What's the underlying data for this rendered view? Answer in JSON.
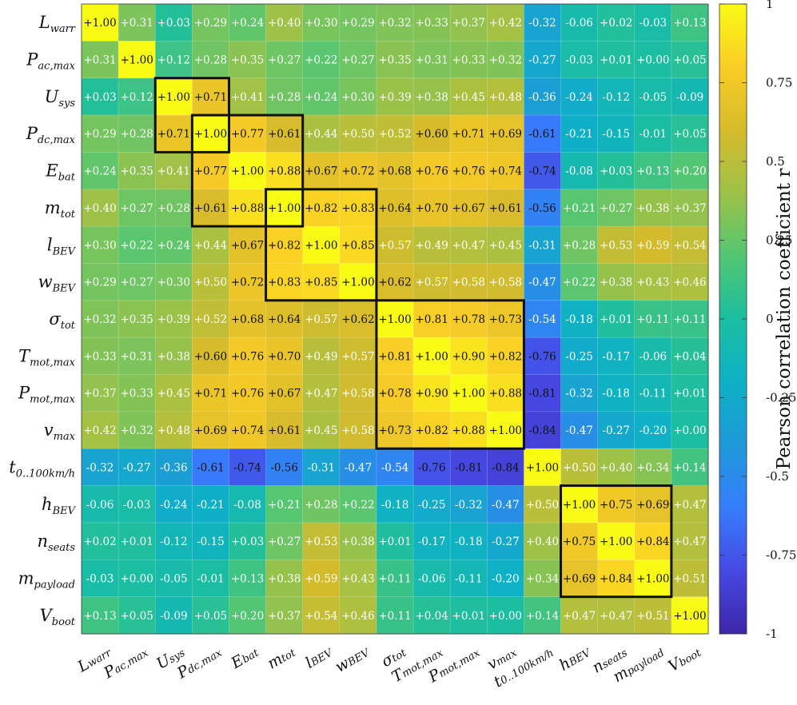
{
  "chart_data": {
    "type": "heatmap",
    "variables": [
      {
        "base": "L",
        "sub": "warr"
      },
      {
        "base": "P",
        "sub": "ac,max"
      },
      {
        "base": "U",
        "sub": "sys"
      },
      {
        "base": "P",
        "sub": "dc,max"
      },
      {
        "base": "E",
        "sub": "bat"
      },
      {
        "base": "m",
        "sub": "tot"
      },
      {
        "base": "l",
        "sub": "BEV"
      },
      {
        "base": "w",
        "sub": "BEV"
      },
      {
        "base": "σ",
        "sub": "tot"
      },
      {
        "base": "T",
        "sub": "mot,max"
      },
      {
        "base": "P",
        "sub": "mot,max"
      },
      {
        "base": "v",
        "sub": "max"
      },
      {
        "base": "t",
        "sub": "0..100km/h"
      },
      {
        "base": "h",
        "sub": "BEV"
      },
      {
        "base": "n",
        "sub": "seats"
      },
      {
        "base": "m",
        "sub": "payload"
      },
      {
        "base": "V",
        "sub": "boot"
      }
    ],
    "matrix": [
      [
        1.0,
        0.31,
        0.03,
        0.29,
        0.24,
        0.4,
        0.3,
        0.29,
        0.32,
        0.33,
        0.37,
        0.42,
        -0.32,
        -0.06,
        0.02,
        -0.03,
        0.13
      ],
      [
        0.31,
        1.0,
        0.12,
        0.28,
        0.35,
        0.27,
        0.22,
        0.27,
        0.35,
        0.31,
        0.33,
        0.32,
        -0.27,
        -0.03,
        0.01,
        0.0,
        0.05
      ],
      [
        0.03,
        0.12,
        1.0,
        0.71,
        0.41,
        0.28,
        0.24,
        0.3,
        0.39,
        0.38,
        0.45,
        0.48,
        -0.36,
        -0.24,
        -0.12,
        -0.05,
        -0.09
      ],
      [
        0.29,
        0.28,
        0.71,
        1.0,
        0.77,
        0.61,
        0.44,
        0.5,
        0.52,
        0.6,
        0.71,
        0.69,
        -0.61,
        -0.21,
        -0.15,
        -0.01,
        0.05
      ],
      [
        0.24,
        0.35,
        0.41,
        0.77,
        1.0,
        0.88,
        0.67,
        0.72,
        0.68,
        0.76,
        0.76,
        0.74,
        -0.74,
        -0.08,
        0.03,
        0.13,
        0.2
      ],
      [
        0.4,
        0.27,
        0.28,
        0.61,
        0.88,
        1.0,
        0.82,
        0.83,
        0.64,
        0.7,
        0.67,
        0.61,
        -0.56,
        0.21,
        0.27,
        0.38,
        0.37
      ],
      [
        0.3,
        0.22,
        0.24,
        0.44,
        0.67,
        0.82,
        1.0,
        0.85,
        0.57,
        0.49,
        0.47,
        0.45,
        -0.31,
        0.28,
        0.53,
        0.59,
        0.54
      ],
      [
        0.29,
        0.27,
        0.3,
        0.5,
        0.72,
        0.83,
        0.85,
        1.0,
        0.62,
        0.57,
        0.58,
        0.58,
        -0.47,
        0.22,
        0.38,
        0.43,
        0.46
      ],
      [
        0.32,
        0.35,
        0.39,
        0.52,
        0.68,
        0.64,
        0.57,
        0.62,
        1.0,
        0.81,
        0.78,
        0.73,
        -0.54,
        -0.18,
        0.01,
        0.11,
        0.11
      ],
      [
        0.33,
        0.31,
        0.38,
        0.6,
        0.76,
        0.7,
        0.49,
        0.57,
        0.81,
        1.0,
        0.9,
        0.82,
        -0.76,
        -0.25,
        -0.17,
        -0.06,
        0.04
      ],
      [
        0.37,
        0.33,
        0.45,
        0.71,
        0.76,
        0.67,
        0.47,
        0.58,
        0.78,
        0.9,
        1.0,
        0.88,
        -0.81,
        -0.32,
        -0.18,
        -0.11,
        0.01
      ],
      [
        0.42,
        0.32,
        0.48,
        0.69,
        0.74,
        0.61,
        0.45,
        0.58,
        0.73,
        0.82,
        0.88,
        1.0,
        -0.84,
        -0.47,
        -0.27,
        -0.2,
        0.0
      ],
      [
        -0.32,
        -0.27,
        -0.36,
        -0.61,
        -0.74,
        -0.56,
        -0.31,
        -0.47,
        -0.54,
        -0.76,
        -0.81,
        -0.84,
        1.0,
        0.5,
        0.4,
        0.34,
        0.14
      ],
      [
        -0.06,
        -0.03,
        -0.24,
        -0.21,
        -0.08,
        0.21,
        0.28,
        0.22,
        -0.18,
        -0.25,
        -0.32,
        -0.47,
        0.5,
        1.0,
        0.75,
        0.69,
        0.47
      ],
      [
        0.02,
        0.01,
        -0.12,
        -0.15,
        0.03,
        0.27,
        0.53,
        0.38,
        0.01,
        -0.17,
        -0.18,
        -0.27,
        0.4,
        0.75,
        1.0,
        0.84,
        0.47
      ],
      [
        -0.03,
        0.0,
        -0.05,
        -0.01,
        0.13,
        0.38,
        0.59,
        0.43,
        0.11,
        -0.06,
        -0.11,
        -0.2,
        0.34,
        0.69,
        0.84,
        1.0,
        0.51
      ],
      [
        0.13,
        0.05,
        -0.09,
        0.05,
        0.2,
        0.37,
        0.54,
        0.46,
        0.11,
        0.04,
        0.01,
        0.0,
        0.14,
        0.47,
        0.47,
        0.51,
        1.0
      ]
    ],
    "highlight_blocks": [
      {
        "from": 2,
        "to": 3
      },
      {
        "from": 3,
        "to": 5
      },
      {
        "from": 5,
        "to": 7
      },
      {
        "from": 8,
        "to": 11
      },
      {
        "from": 13,
        "to": 15
      }
    ],
    "colorbar": {
      "label": "Pearson correlation coefficient r",
      "range": [
        -1,
        1
      ],
      "ticks": [
        "1",
        "0.75",
        "0.5",
        "0.25",
        "0",
        "-0.25",
        "-0.5",
        "-0.75",
        "-1"
      ],
      "colormap": "parula"
    },
    "title": "",
    "xlabel": "",
    "ylabel": ""
  }
}
